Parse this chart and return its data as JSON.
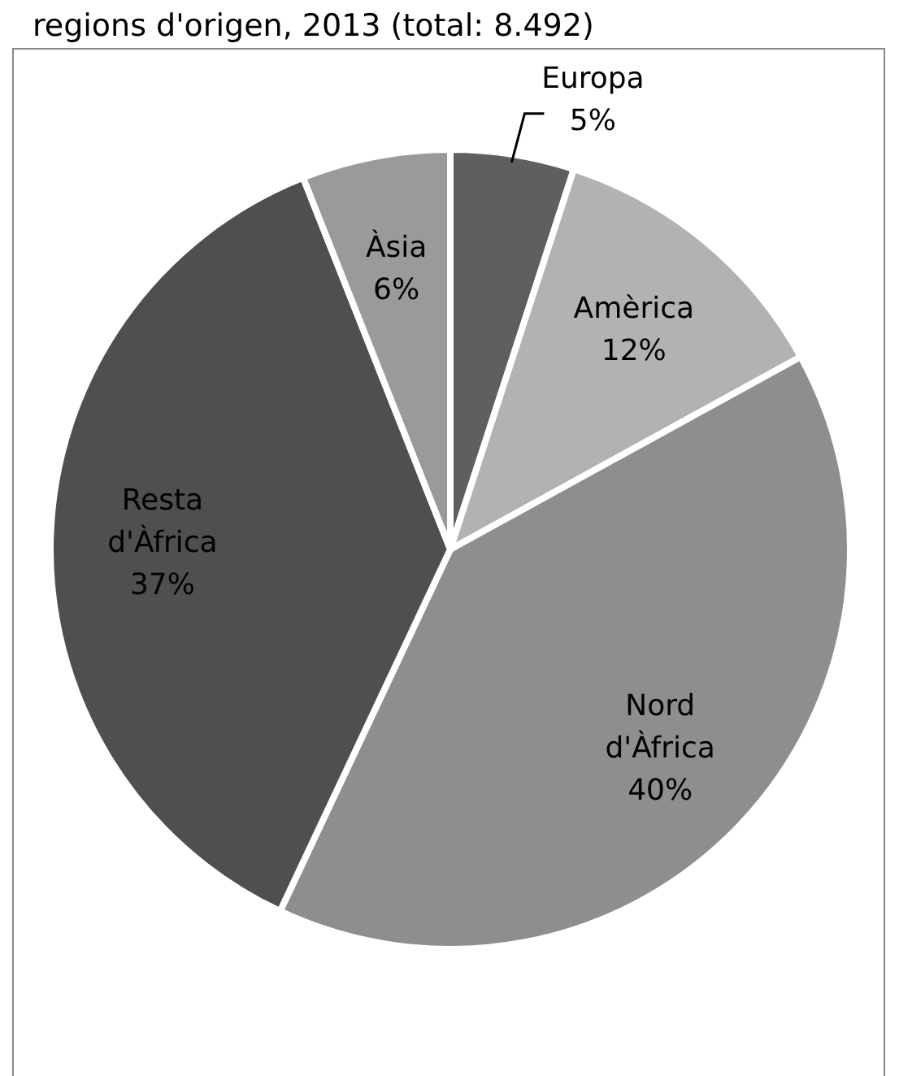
{
  "chart_data": {
    "type": "pie",
    "title": "regions d'origen, 2013 (total: 8.492)",
    "categories": [
      "Europa",
      "Amèrica",
      "Nord d'Àfrica",
      "Resta d'Àfrica",
      "Àsia"
    ],
    "values": [
      5,
      12,
      40,
      37,
      6
    ],
    "colors": [
      "#5f5f5f",
      "#b2b2b2",
      "#8e8e8e",
      "#4f4f4f",
      "#9a9a9a"
    ],
    "value_labels": [
      "5%",
      "12%",
      "40%",
      "37%",
      "6%"
    ]
  }
}
